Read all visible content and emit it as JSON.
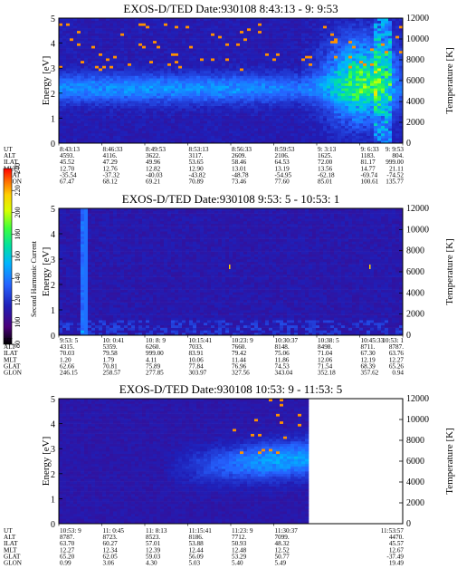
{
  "colorbar": {
    "label": "Second Harmonic Current",
    "ticks": [
      "80",
      "100",
      "120",
      "140",
      "160",
      "180",
      "200",
      "220",
      "240"
    ],
    "colors": [
      "#000000",
      "#4b007a",
      "#1f1fb8",
      "#2563ff",
      "#00b4ff",
      "#00e0a0",
      "#3cff3c",
      "#d8ff00",
      "#ffd000",
      "#ff6a00",
      "#ff0000"
    ]
  },
  "chart_data": [
    {
      "type": "heatmap",
      "title": "EXOS-D/TED   Date:930108   8:43:13 - 9: 9:53",
      "ylabel": "Energy [eV]",
      "y2label": "Temperature [K]",
      "ylim": [
        0,
        5
      ],
      "yticks": [
        "0",
        "1",
        "2",
        "3",
        "4",
        "5"
      ],
      "y2lim": [
        0,
        12000
      ],
      "y2ticks": [
        "0",
        "2000",
        "4000",
        "6000",
        "8000",
        "10000",
        "12000"
      ],
      "variant": 1,
      "ephemeris": {
        "rows": [
          "UT",
          "ALT",
          "ILAT",
          "MLT",
          "GLAT",
          "GLON"
        ],
        "columns": [
          [
            "8:43:13",
            "4593.",
            "45.52",
            "12.70",
            "-35.54",
            "67.47"
          ],
          [
            "8:46:33",
            "4116.",
            "47.29",
            "12.76",
            "-37.32",
            "68.12"
          ],
          [
            "8:49:53",
            "3622.",
            "49.96",
            "12.82",
            "-40.03",
            "69.21"
          ],
          [
            "8:53:13",
            "3117.",
            "53.65",
            "12.90",
            "-43.82",
            "70.89"
          ],
          [
            "8:56:33",
            "2609.",
            "58.46",
            "13.01",
            "-48.78",
            "73.46"
          ],
          [
            "8:59:53",
            "2106.",
            "64.53",
            "13.19",
            "-54.95",
            "77.60"
          ],
          [
            "9: 3:13",
            "1625.",
            "72.00",
            "13.56",
            "-62.18",
            "85.01"
          ],
          [
            "9: 6:33",
            "1183.",
            "81.17",
            "14.77",
            "-69.74",
            "100.61"
          ],
          [
            "9: 9:53",
            "804.",
            "999.00",
            "21.11",
            "-74.52",
            "135.77"
          ]
        ]
      }
    },
    {
      "type": "heatmap",
      "title": "EXOS-D/TED   Date:930108   9:53: 5 - 10:53: 1",
      "ylabel": "Energy [eV]",
      "y2label": "Temperature [K]",
      "ylim": [
        0,
        5
      ],
      "yticks": [
        "0",
        "1",
        "2",
        "3",
        "4",
        "5"
      ],
      "y2lim": [
        0,
        12000
      ],
      "y2ticks": [
        "0",
        "2000",
        "4000",
        "6000",
        "8000",
        "10000",
        "12000"
      ],
      "variant": 2,
      "ephemeris": {
        "rows": [
          "UT",
          "ALT",
          "ILAT",
          "MLT",
          "GLAT",
          "GLON"
        ],
        "columns": [
          [
            "9:53: 5",
            "4315.",
            "70.03",
            "1.20",
            "62.66",
            "246.15"
          ],
          [
            "10: 0:41",
            "5359.",
            "79.58",
            "1.79",
            "70.81",
            "258.57"
          ],
          [
            "10: 8: 9",
            "6260.",
            "999.00",
            "4.11",
            "75.89",
            "277.85"
          ],
          [
            "10:15:41",
            "7033.",
            "83.91",
            "10.06",
            "77.84",
            "303.97"
          ],
          [
            "10:23: 9",
            "7660.",
            "79.42",
            "11.44",
            "76.96",
            "327.56"
          ],
          [
            "10:30:37",
            "8148.",
            "75.06",
            "11.86",
            "74.53",
            "343.04"
          ],
          [
            "10:38: 5",
            "8498.",
            "71.04",
            "12.06",
            "71.54",
            "352.18"
          ],
          [
            "10:45:33",
            "8711.",
            "67.30",
            "12.19",
            "68.39",
            "357.62"
          ],
          [
            "10:53: 1",
            "8787.",
            "63.76",
            "12.27",
            "65.26",
            "0.94"
          ]
        ]
      }
    },
    {
      "type": "heatmap",
      "title": "EXOS-D/TED   Date:930108   10:53: 9 - 11:53: 5",
      "ylabel": "Energy [eV]",
      "y2label": "Temperature [K]",
      "ylim": [
        0,
        5
      ],
      "yticks": [
        "0",
        "1",
        "2",
        "3",
        "4",
        "5"
      ],
      "y2lim": [
        0,
        12000
      ],
      "y2ticks": [
        "0",
        "2000",
        "4000",
        "6000",
        "8000",
        "10000",
        "12000"
      ],
      "variant": 3,
      "ephemeris": {
        "rows": [
          "UT",
          "ALT",
          "ILAT",
          "MLT",
          "GLAT",
          "GLON"
        ],
        "columns": [
          [
            "10:53: 9",
            "8787.",
            "63.70",
            "12.27",
            "65.20",
            "0.99"
          ],
          [
            "11: 0:45",
            "8723.",
            "60.27",
            "12.34",
            "62.05",
            "3.06"
          ],
          [
            "11: 8:13",
            "8523.",
            "57.01",
            "12.39",
            "59.03",
            "4.30"
          ],
          [
            "11:15:41",
            "8186.",
            "53.88",
            "12.44",
            "56.09",
            "5.03"
          ],
          [
            "11:23: 9",
            "7712.",
            "50.93",
            "12.48",
            "53.29",
            "5.40"
          ],
          [
            "11:30:37",
            "7099.",
            "48.32",
            "12.52",
            "50.77",
            "5.49"
          ],
          [
            "11:53:57",
            "4470.",
            "45.57",
            "12.67",
            "-37.49",
            "19.49"
          ]
        ]
      }
    }
  ]
}
